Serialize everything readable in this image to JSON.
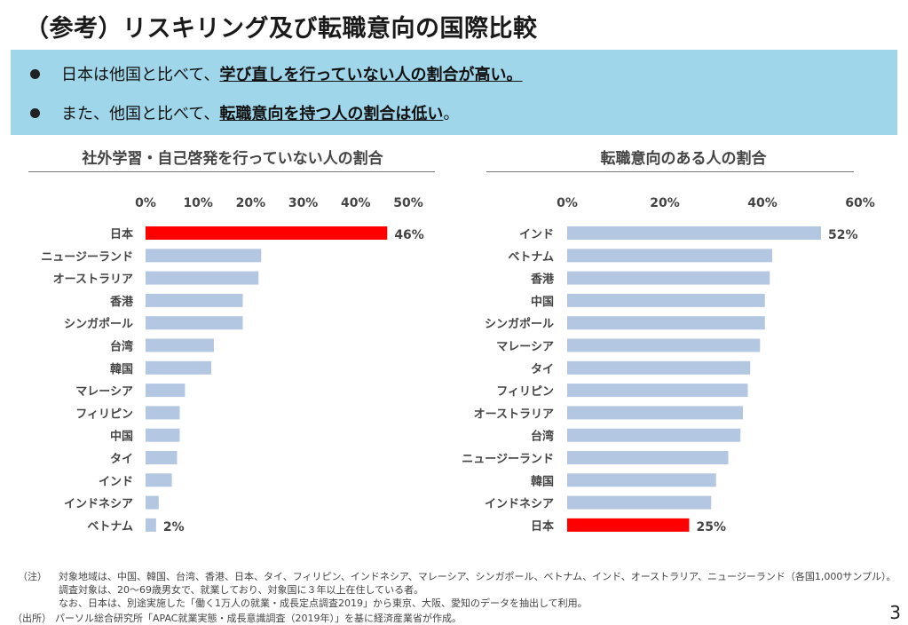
{
  "page_title": "（参考）リスキリング及び転職意向の国際比較",
  "bullets": [
    {
      "lead": "日本は他国と比べて、",
      "emphasis": "学び直しを行っていない人の割合が高い。",
      "trail": ""
    },
    {
      "lead": "また、他国と比べて、",
      "emphasis": "転職意向を持つ人の割合は低い",
      "trail": "。"
    }
  ],
  "colors": {
    "bar": "#b4c7e2",
    "highlight": "#ff0000",
    "banner": "#9fd6ea"
  },
  "chart_data": [
    {
      "type": "bar",
      "orientation": "horizontal",
      "title": "社外学習・自己啓発を行っていない人の割合",
      "xlim": [
        0,
        50
      ],
      "ticks": [
        "0%",
        "10%",
        "20%",
        "30%",
        "40%",
        "50%"
      ],
      "tick_values": [
        0,
        10,
        20,
        30,
        40,
        50
      ],
      "categories": [
        "日本",
        "ニュージーランド",
        "オーストラリア",
        "香港",
        "シンガポール",
        "台湾",
        "韓国",
        "マレーシア",
        "フィリピン",
        "中国",
        "タイ",
        "インド",
        "インドネシア",
        "ベトナム"
      ],
      "values": [
        46,
        22,
        21.5,
        18.5,
        18.5,
        13,
        12.5,
        7.5,
        6.5,
        6.5,
        6,
        5,
        2.5,
        2
      ],
      "highlight": "日本",
      "data_labels": [
        {
          "category": "日本",
          "text": "46%"
        },
        {
          "category": "ベトナム",
          "text": "2%"
        }
      ]
    },
    {
      "type": "bar",
      "orientation": "horizontal",
      "title": "転職意向のある人の割合",
      "xlim": [
        0,
        60
      ],
      "ticks": [
        "0%",
        "20%",
        "40%",
        "60%"
      ],
      "tick_values": [
        0,
        20,
        40,
        60
      ],
      "categories": [
        "インド",
        "ベトナム",
        "香港",
        "中国",
        "シンガポール",
        "マレーシア",
        "タイ",
        "フィリピン",
        "オーストラリア",
        "台湾",
        "ニュージーランド",
        "韓国",
        "インドネシア",
        "日本"
      ],
      "values": [
        52,
        42,
        41.5,
        40.5,
        40.5,
        39.5,
        37.5,
        37,
        36,
        35.5,
        33,
        30.5,
        29.5,
        25
      ],
      "highlight": "日本",
      "data_labels": [
        {
          "category": "インド",
          "text": "52%"
        },
        {
          "category": "日本",
          "text": "25%"
        }
      ]
    }
  ],
  "notes": {
    "label1": "（注）",
    "line1": "対象地域は、中国、韓国、台湾、香港、日本、タイ、フィリピン、インドネシア、マレーシア、シンガポール、ベトナム、インド、オーストラリア、ニュージーランド（各国1,000サンプル）。",
    "line2": "調査対象は、20～69歳男女で、就業しており、対象国に３年以上在住している者。",
    "line3": "なお、日本は、別途実施した「働く1万人の就業・成長定点調査2019」から東京、大阪、愛知のデータを抽出して利用。",
    "label2": "（出所）",
    "source": "パーソル総合研究所「APAC就業実態・成長意識調査（2019年）」を基に経済産業省が作成。"
  },
  "page_number": "3"
}
